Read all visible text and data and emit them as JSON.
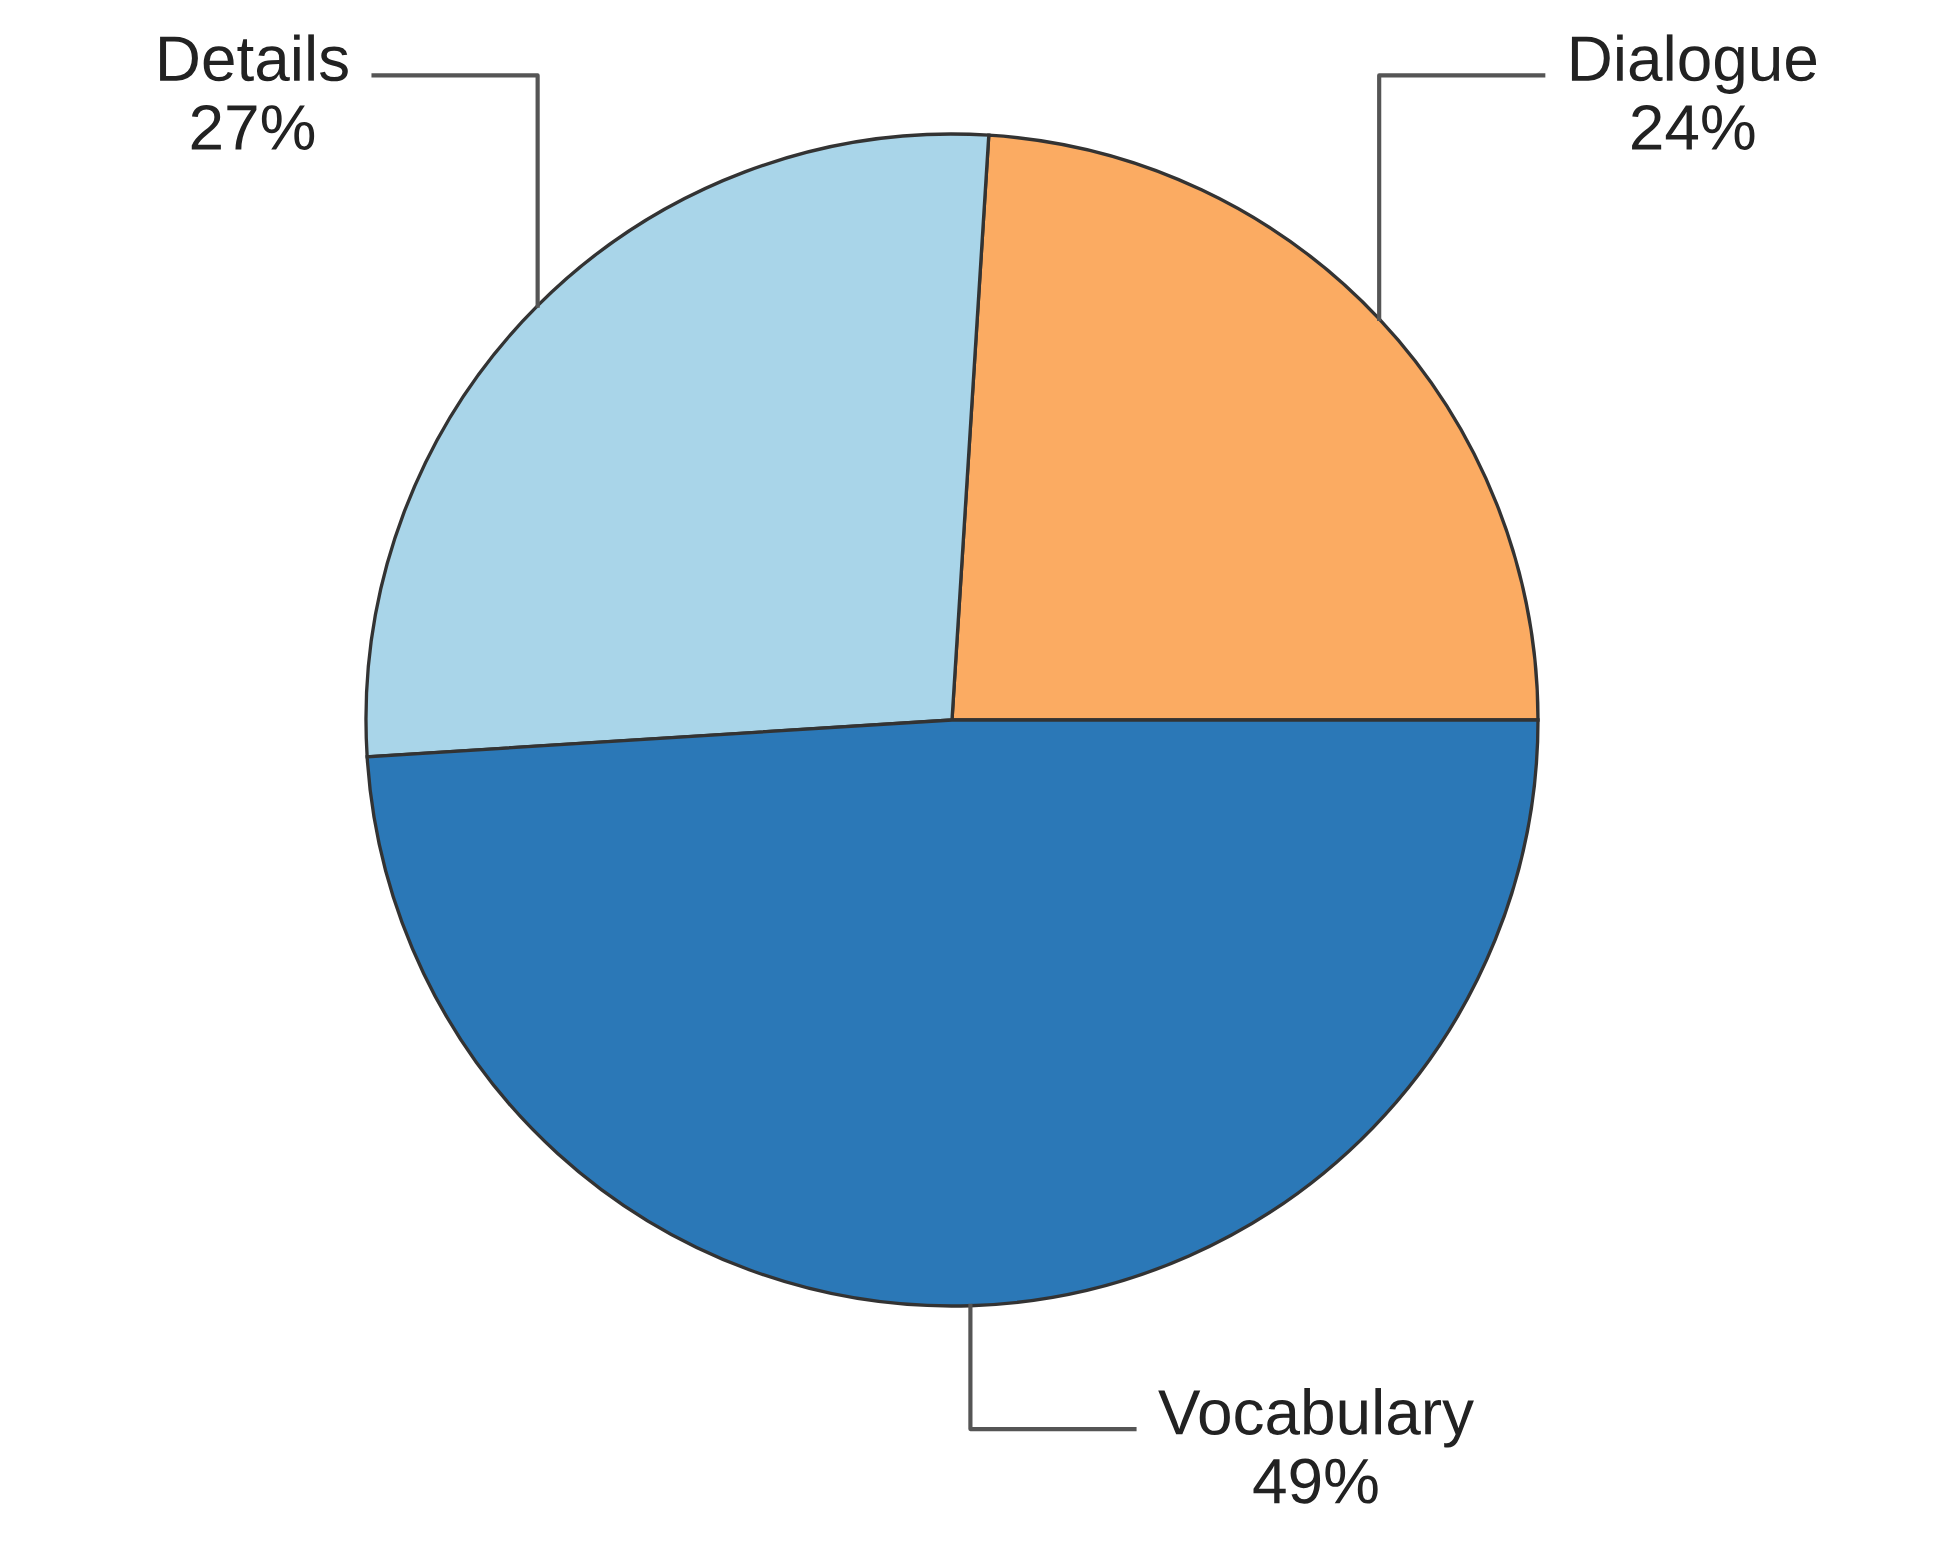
{
  "chart_data": {
    "type": "pie",
    "categories": [
      "Dialogue",
      "Details",
      "Vocabulary"
    ],
    "values": [
      24,
      27,
      49
    ],
    "colors": [
      "#fbab62",
      "#a9d5e9",
      "#2b78b7"
    ],
    "value_labels": [
      "24%",
      "27%",
      "49%"
    ]
  }
}
